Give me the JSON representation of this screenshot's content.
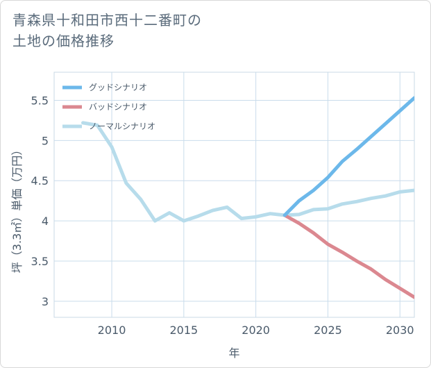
{
  "chart_data": {
    "type": "line",
    "title_lines": [
      "青森県十和田市西十二番町の",
      "土地の価格推移"
    ],
    "xlabel": "年",
    "ylabel": "坪（3.3㎡）単価（万円）",
    "xlim": [
      2006,
      2031
    ],
    "ylim": [
      2.8,
      5.85
    ],
    "x_ticks": [
      2010,
      2015,
      2020,
      2025,
      2030
    ],
    "y_ticks": [
      3,
      3.5,
      4,
      4.5,
      5,
      5.5
    ],
    "x_tick_labels": [
      "2010",
      "2015",
      "2020",
      "2025",
      "2030"
    ],
    "y_tick_labels": [
      "3",
      "3.5",
      "4",
      "4.5",
      "5",
      "5.5"
    ],
    "grid": true,
    "legend_position": "top-left",
    "series": [
      {
        "name": "グッドシナリオ",
        "color": "#6cb8ea",
        "x": [
          2022,
          2023,
          2024,
          2025,
          2026,
          2027,
          2028,
          2029,
          2030,
          2031
        ],
        "y": [
          4.07,
          4.25,
          4.38,
          4.54,
          4.74,
          4.89,
          5.05,
          5.21,
          5.37,
          5.53
        ]
      },
      {
        "name": "バッドシナリオ",
        "color": "#db8890",
        "x": [
          2022,
          2023,
          2024,
          2025,
          2026,
          2027,
          2028,
          2029,
          2030,
          2031
        ],
        "y": [
          4.07,
          3.97,
          3.85,
          3.71,
          3.61,
          3.5,
          3.4,
          3.27,
          3.16,
          3.05
        ]
      },
      {
        "name": "ノーマルシナリオ",
        "color": "#b7dceb",
        "x": [
          2008,
          2009,
          2010,
          2011,
          2012,
          2013,
          2014,
          2015,
          2016,
          2017,
          2018,
          2019,
          2020,
          2021,
          2022,
          2023,
          2024,
          2025,
          2026,
          2027,
          2028,
          2029,
          2030,
          2031
        ],
        "y": [
          5.22,
          5.19,
          4.92,
          4.47,
          4.27,
          4.0,
          4.1,
          4.0,
          4.06,
          4.13,
          4.17,
          4.03,
          4.05,
          4.09,
          4.07,
          4.08,
          4.14,
          4.15,
          4.21,
          4.24,
          4.28,
          4.31,
          4.36,
          4.38
        ]
      }
    ]
  }
}
